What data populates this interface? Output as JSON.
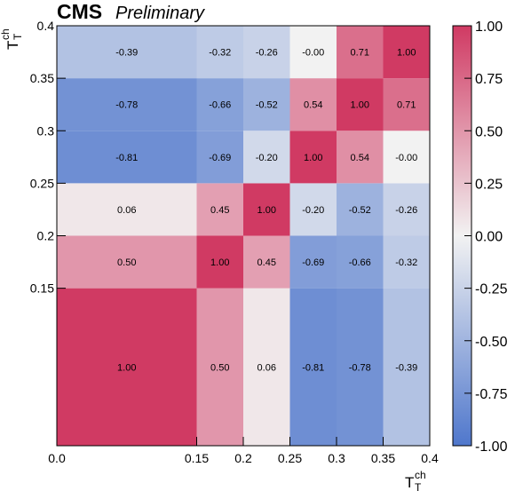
{
  "header": {
    "experiment": "CMS",
    "status": "Preliminary"
  },
  "colors": {
    "negative": "#4f77cc",
    "neutral": "#f2f2f2",
    "positive": "#d03a63"
  },
  "chart_data": {
    "type": "heatmap",
    "title": "",
    "xlabel": {
      "main": "T",
      "sup": "ch",
      "sub": "T"
    },
    "ylabel": {
      "main": "T",
      "sup": "ch",
      "sub": "T"
    },
    "bin_edges": [
      0.0,
      0.15,
      0.2,
      0.25,
      0.3,
      0.35,
      0.4
    ],
    "x_tick_labels": [
      "0.0",
      "0.15",
      "0.2",
      "0.25",
      "0.3",
      "0.35",
      "0.4"
    ],
    "y_tick_labels": [
      "0.15",
      "0.2",
      "0.25",
      "0.3",
      "0.35",
      "0.4"
    ],
    "y_tick_values": [
      0.15,
      0.2,
      0.25,
      0.3,
      0.35,
      0.4
    ],
    "xlim": [
      0.0,
      0.4
    ],
    "ylim": [
      0.0,
      0.4
    ],
    "zlim": [
      -1.0,
      1.0
    ],
    "rows_bottom_to_top": [
      [
        "1.00",
        "0.50",
        "0.06",
        "-0.81",
        "-0.78",
        "-0.39"
      ],
      [
        "0.50",
        "1.00",
        "0.45",
        "-0.69",
        "-0.66",
        "-0.32"
      ],
      [
        "0.06",
        "0.45",
        "1.00",
        "-0.20",
        "-0.52",
        "-0.26"
      ],
      [
        "-0.81",
        "-0.69",
        "-0.20",
        "1.00",
        "0.54",
        "-0.00"
      ],
      [
        "-0.78",
        "-0.66",
        "-0.52",
        "0.54",
        "1.00",
        "0.71"
      ],
      [
        "-0.39",
        "-0.32",
        "-0.26",
        "-0.00",
        "0.71",
        "1.00"
      ]
    ],
    "colorbar_tick_labels": [
      "1.00",
      "0.75",
      "0.50",
      "0.25",
      "0.00",
      "-0.25",
      "-0.50",
      "-0.75",
      "-1.00"
    ],
    "colorbar_tick_values": [
      1.0,
      0.75,
      0.5,
      0.25,
      0.0,
      -0.25,
      -0.5,
      -0.75,
      -1.0
    ],
    "grid": false,
    "legend": "colorbar-right"
  }
}
